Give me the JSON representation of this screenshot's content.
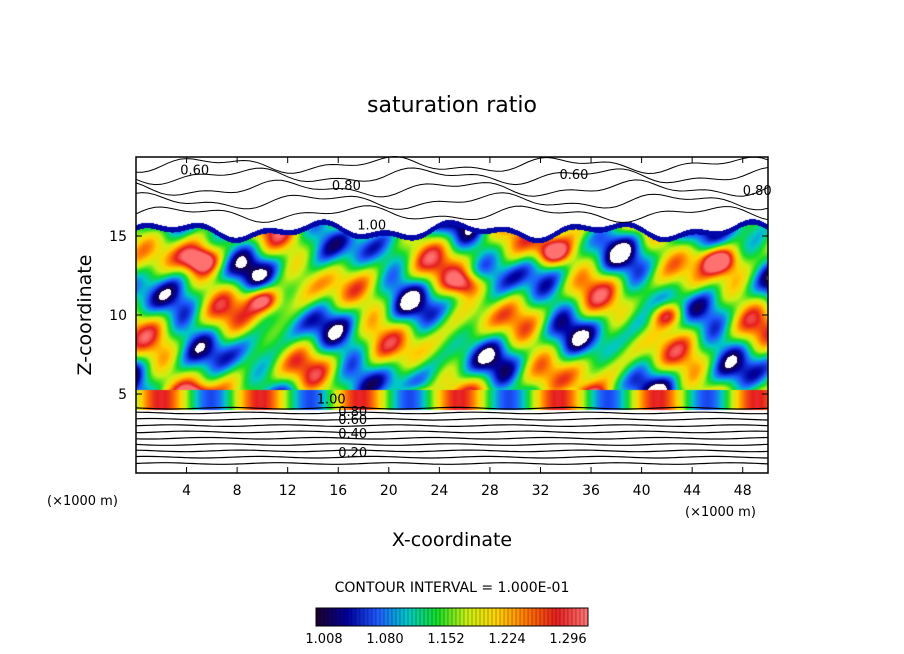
{
  "chart_data": {
    "type": "heatmap",
    "title": "saturation ratio",
    "xlabel": "X-coordinate",
    "ylabel": "Z-coordinate",
    "x_unit": "(×1000 m)",
    "y_unit": "(×1000 m)",
    "xlim": [
      0,
      50
    ],
    "ylim": [
      0,
      20
    ],
    "x_ticks": [
      4,
      8,
      12,
      16,
      20,
      24,
      28,
      32,
      36,
      40,
      44,
      48
    ],
    "y_ticks": [
      5,
      10,
      15
    ],
    "contour_interval_label": "CONTOUR INTERVAL = 1.000E-01",
    "colorbar": {
      "tick_labels": [
        "1.008",
        "1.080",
        "1.152",
        "1.224",
        "1.296"
      ],
      "range": [
        1.0,
        1.33
      ],
      "colormap": [
        "#1a0030",
        "#0000a0",
        "#1e5aff",
        "#00c8c8",
        "#14dc28",
        "#c8f014",
        "#ffd200",
        "#ff7800",
        "#e61e1e",
        "#ff7070"
      ]
    },
    "contour_labels": {
      "upper": [
        "0.60",
        "0.80",
        "0.60",
        "0.80",
        "1.00"
      ],
      "lower": [
        "1.00",
        "0.80",
        "0.60",
        "0.40",
        "0.20"
      ]
    },
    "supersaturated_layer_z": [
      4,
      15.5
    ]
  }
}
